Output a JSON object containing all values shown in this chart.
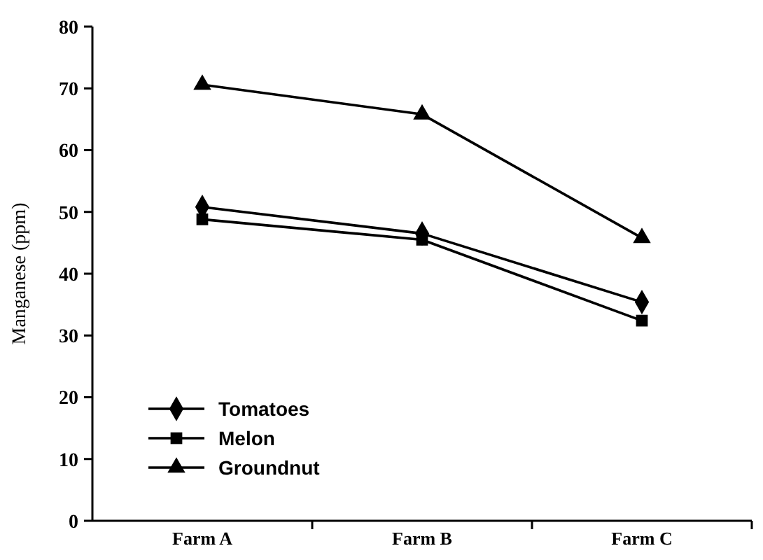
{
  "chart_data": {
    "type": "line",
    "ylabel": "Manganese (ppm)",
    "categories": [
      "Farm A",
      "Farm B",
      "Farm C"
    ],
    "ylim": [
      0,
      80
    ],
    "yticks": [
      0,
      10,
      20,
      30,
      40,
      50,
      60,
      70,
      80
    ],
    "legend": "bottom left",
    "grid": false,
    "series": [
      {
        "name": "Tomatoes",
        "color": "#000000",
        "marker": "diamond",
        "values": [
          50.8,
          46.5,
          35.4
        ]
      },
      {
        "name": "Melon",
        "color": "#000000",
        "marker": "square",
        "values": [
          48.8,
          45.5,
          32.4
        ]
      },
      {
        "name": "Groundnut",
        "color": "#000000",
        "marker": "triangle",
        "values": [
          70.6,
          65.8,
          45.8
        ]
      }
    ]
  }
}
